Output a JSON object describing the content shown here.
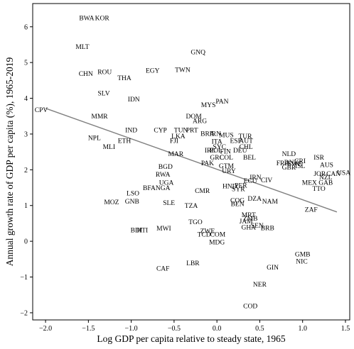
{
  "chart_data": {
    "type": "scatter",
    "title": "",
    "xlabel": "Log GDP per capita relative to steady state, 1965",
    "ylabel": "Annual growth rate of GDP per capita (%), 1965-2019",
    "xlim": [
      -2.15,
      1.55
    ],
    "ylim": [
      -2.2,
      6.65
    ],
    "xticks": [
      -2.0,
      -1.5,
      -1.0,
      -0.5,
      0.0,
      0.5,
      1.0,
      1.5
    ],
    "xtick_labels": [
      "−2.0",
      "−1.5",
      "−1.0",
      "−0.5",
      "0.0",
      "0.5",
      "1.0",
      "1.5"
    ],
    "yticks": [
      -2,
      -1,
      0,
      1,
      2,
      3,
      4,
      5,
      6
    ],
    "ytick_labels": [
      "−2",
      "−1",
      "0",
      "1",
      "2",
      "3",
      "4",
      "5",
      "6"
    ],
    "grid": false,
    "line_color": "#808080",
    "fit_line": {
      "x": [
        -2.0,
        1.4
      ],
      "y": [
        3.72,
        0.82
      ]
    },
    "points": [
      {
        "label": "BWA",
        "x": -1.52,
        "y": 6.25
      },
      {
        "label": "KOR",
        "x": -1.34,
        "y": 6.25
      },
      {
        "label": "MLT",
        "x": -1.57,
        "y": 5.45
      },
      {
        "label": "GNQ",
        "x": -0.22,
        "y": 5.3
      },
      {
        "label": "CHN",
        "x": -1.53,
        "y": 4.7
      },
      {
        "label": "ROU",
        "x": -1.31,
        "y": 4.75
      },
      {
        "label": "EGY",
        "x": -0.75,
        "y": 4.78
      },
      {
        "label": "TWN",
        "x": -0.4,
        "y": 4.8
      },
      {
        "label": "THA",
        "x": -1.08,
        "y": 4.58
      },
      {
        "label": "SLV",
        "x": -1.32,
        "y": 4.15
      },
      {
        "label": "IDN",
        "x": -0.97,
        "y": 3.98
      },
      {
        "label": "PAN",
        "x": 0.06,
        "y": 3.92
      },
      {
        "label": "MYS",
        "x": -0.1,
        "y": 3.82
      },
      {
        "label": "CPV",
        "x": -2.05,
        "y": 3.68
      },
      {
        "label": "MMR",
        "x": -1.37,
        "y": 3.5
      },
      {
        "label": "DOM",
        "x": -0.27,
        "y": 3.5
      },
      {
        "label": "ARG",
        "x": -0.2,
        "y": 3.38
      },
      {
        "label": "IND",
        "x": -1.0,
        "y": 3.12
      },
      {
        "label": "CYP",
        "x": -0.66,
        "y": 3.12
      },
      {
        "label": "TUN",
        "x": -0.42,
        "y": 3.12
      },
      {
        "label": "PRT",
        "x": -0.29,
        "y": 3.12
      },
      {
        "label": "BRA",
        "x": -0.11,
        "y": 3.02
      },
      {
        "label": "IRN",
        "x": -0.02,
        "y": 3.02
      },
      {
        "label": "MUS",
        "x": 0.11,
        "y": 2.98
      },
      {
        "label": "TUR",
        "x": 0.33,
        "y": 2.95
      },
      {
        "label": "LKA",
        "x": -0.45,
        "y": 2.95
      },
      {
        "label": "NPL",
        "x": -1.43,
        "y": 2.9
      },
      {
        "label": "ETH",
        "x": -1.08,
        "y": 2.82
      },
      {
        "label": "FJI",
        "x": -0.5,
        "y": 2.82
      },
      {
        "label": "ITA",
        "x": 0.0,
        "y": 2.8
      },
      {
        "label": "ESP",
        "x": 0.22,
        "y": 2.82
      },
      {
        "label": "AUT",
        "x": 0.34,
        "y": 2.82
      },
      {
        "label": "SYC",
        "x": 0.03,
        "y": 2.65
      },
      {
        "label": "CHL",
        "x": 0.34,
        "y": 2.65
      },
      {
        "label": "MLI",
        "x": -1.26,
        "y": 2.65
      },
      {
        "label": "IRL",
        "x": -0.08,
        "y": 2.55
      },
      {
        "label": "POL",
        "x": -0.01,
        "y": 2.55
      },
      {
        "label": "FIN",
        "x": 0.1,
        "y": 2.52
      },
      {
        "label": "DEU",
        "x": 0.27,
        "y": 2.55
      },
      {
        "label": "NLD",
        "x": 0.84,
        "y": 2.45
      },
      {
        "label": "MAR",
        "x": -0.48,
        "y": 2.45
      },
      {
        "label": "GRC",
        "x": 0.0,
        "y": 2.35
      },
      {
        "label": "COL",
        "x": 0.11,
        "y": 2.35
      },
      {
        "label": "BEL",
        "x": 0.38,
        "y": 2.35
      },
      {
        "label": "PAK",
        "x": -0.11,
        "y": 2.2
      },
      {
        "label": "GTM",
        "x": 0.11,
        "y": 2.12
      },
      {
        "label": "ISR",
        "x": 1.19,
        "y": 2.35
      },
      {
        "label": "FRA",
        "x": 0.77,
        "y": 2.2
      },
      {
        "label": "DNK",
        "x": 0.87,
        "y": 2.22
      },
      {
        "label": "SWE",
        "x": 0.91,
        "y": 2.18
      },
      {
        "label": "CRI",
        "x": 0.97,
        "y": 2.25
      },
      {
        "label": "ISL",
        "x": 0.97,
        "y": 2.12
      },
      {
        "label": "GBR",
        "x": 0.84,
        "y": 2.08
      },
      {
        "label": "AUS",
        "x": 1.28,
        "y": 2.15
      },
      {
        "label": "BGD",
        "x": -0.6,
        "y": 2.1
      },
      {
        "label": "URY",
        "x": 0.14,
        "y": 1.98
      },
      {
        "label": "JOR",
        "x": 1.2,
        "y": 1.9
      },
      {
        "label": "CAN",
        "x": 1.36,
        "y": 1.9
      },
      {
        "label": "USA",
        "x": 1.48,
        "y": 1.93
      },
      {
        "label": "NZL",
        "x": 1.27,
        "y": 1.8
      },
      {
        "label": "RWA",
        "x": -0.63,
        "y": 1.88
      },
      {
        "label": "IRN",
        "x": 0.45,
        "y": 1.8
      },
      {
        "label": "MEX",
        "x": 1.08,
        "y": 1.65
      },
      {
        "label": "GAB",
        "x": 1.27,
        "y": 1.65
      },
      {
        "label": "ECU",
        "x": 0.39,
        "y": 1.7
      },
      {
        "label": "CIV",
        "x": 0.58,
        "y": 1.72
      },
      {
        "label": "UGA",
        "x": -0.59,
        "y": 1.65
      },
      {
        "label": "HND",
        "x": 0.15,
        "y": 1.55
      },
      {
        "label": "PER",
        "x": 0.28,
        "y": 1.57
      },
      {
        "label": "SYR",
        "x": 0.25,
        "y": 1.47
      },
      {
        "label": "TTO",
        "x": 1.19,
        "y": 1.48
      },
      {
        "label": "BFA",
        "x": -0.79,
        "y": 1.5
      },
      {
        "label": "NGA",
        "x": -0.63,
        "y": 1.5
      },
      {
        "label": "CMR",
        "x": -0.17,
        "y": 1.42
      },
      {
        "label": "LSO",
        "x": -0.98,
        "y": 1.35
      },
      {
        "label": "DZA",
        "x": 0.44,
        "y": 1.2
      },
      {
        "label": "NAM",
        "x": 0.62,
        "y": 1.12
      },
      {
        "label": "COG",
        "x": 0.24,
        "y": 1.15
      },
      {
        "label": "BEN",
        "x": 0.24,
        "y": 1.05
      },
      {
        "label": "MOZ",
        "x": -1.23,
        "y": 1.1
      },
      {
        "label": "GNB",
        "x": -0.99,
        "y": 1.12
      },
      {
        "label": "SLE",
        "x": -0.56,
        "y": 1.08
      },
      {
        "label": "TZA",
        "x": -0.3,
        "y": 1.0
      },
      {
        "label": "ZAF",
        "x": 1.1,
        "y": 0.9
      },
      {
        "label": "MRT",
        "x": 0.37,
        "y": 0.75
      },
      {
        "label": "ZMB",
        "x": 0.39,
        "y": 0.65
      },
      {
        "label": "JAM",
        "x": 0.34,
        "y": 0.57
      },
      {
        "label": "TGO",
        "x": -0.25,
        "y": 0.55
      },
      {
        "label": "SEN",
        "x": 0.47,
        "y": 0.45
      },
      {
        "label": "BRB",
        "x": 0.59,
        "y": 0.38
      },
      {
        "label": "GHA",
        "x": 0.37,
        "y": 0.4
      },
      {
        "label": "ZWE",
        "x": -0.11,
        "y": 0.3
      },
      {
        "label": "TCD",
        "x": -0.15,
        "y": 0.2
      },
      {
        "label": "COM",
        "x": 0.01,
        "y": 0.2
      },
      {
        "label": "BDI",
        "x": -0.94,
        "y": 0.32
      },
      {
        "label": "HTI",
        "x": -0.87,
        "y": 0.32
      },
      {
        "label": "MWI",
        "x": -0.62,
        "y": 0.37
      },
      {
        "label": "MDG",
        "x": 0.0,
        "y": -0.02
      },
      {
        "label": "GMB",
        "x": 1.0,
        "y": -0.35
      },
      {
        "label": "NIC",
        "x": 0.99,
        "y": -0.55
      },
      {
        "label": "LBR",
        "x": -0.28,
        "y": -0.6
      },
      {
        "label": "CAF",
        "x": -0.63,
        "y": -0.75
      },
      {
        "label": "GIN",
        "x": 0.65,
        "y": -0.72
      },
      {
        "label": "NER",
        "x": 0.5,
        "y": -1.2
      },
      {
        "label": "COD",
        "x": 0.39,
        "y": -1.8
      }
    ]
  }
}
